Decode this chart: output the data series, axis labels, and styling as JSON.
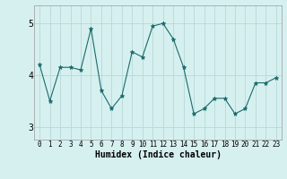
{
  "x": [
    0,
    1,
    2,
    3,
    4,
    5,
    6,
    7,
    8,
    9,
    10,
    11,
    12,
    13,
    14,
    15,
    16,
    17,
    18,
    19,
    20,
    21,
    22,
    23
  ],
  "y": [
    4.2,
    3.5,
    4.15,
    4.15,
    4.1,
    4.9,
    3.7,
    3.35,
    3.6,
    4.45,
    4.35,
    4.95,
    5.0,
    4.7,
    4.15,
    3.25,
    3.35,
    3.55,
    3.55,
    3.25,
    3.35,
    3.85,
    3.85,
    3.95
  ],
  "line_color": "#1a6b6b",
  "marker": "*",
  "marker_size": 3.5,
  "bg_color": "#d6f0f0",
  "grid_color": "#b8d8d8",
  "xlabel": "Humidex (Indice chaleur)",
  "ylim": [
    2.75,
    5.35
  ],
  "xlim": [
    -0.5,
    23.5
  ],
  "yticks": [
    3,
    4,
    5
  ],
  "xticks": [
    0,
    1,
    2,
    3,
    4,
    5,
    6,
    7,
    8,
    9,
    10,
    11,
    12,
    13,
    14,
    15,
    16,
    17,
    18,
    19,
    20,
    21,
    22,
    23
  ]
}
